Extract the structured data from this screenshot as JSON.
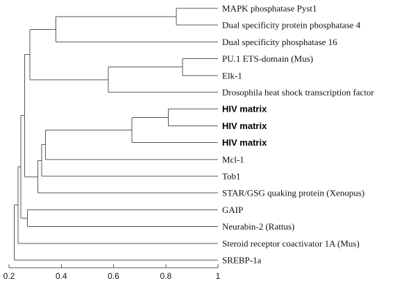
{
  "leaves": [
    {
      "id": "mapk",
      "label": "MAPK phosphatase Pyst1",
      "bold": false
    },
    {
      "id": "dusp4",
      "label": "Dual specificity protein phosphatase 4",
      "bold": false
    },
    {
      "id": "dusp16",
      "label": "Dual specificity phosphatase 16",
      "bold": false
    },
    {
      "id": "pu1",
      "label": "PU.1 ETS-domain (Mus)",
      "bold": false
    },
    {
      "id": "elk1",
      "label": "Elk-1",
      "bold": false
    },
    {
      "id": "dhstf",
      "label": "Drosophila heat shock transcription factor",
      "bold": false
    },
    {
      "id": "hiv1",
      "label": "HIV matrix",
      "bold": true
    },
    {
      "id": "hiv2",
      "label": "HIV matrix",
      "bold": true
    },
    {
      "id": "hiv3",
      "label": "HIV matrix",
      "bold": true
    },
    {
      "id": "mcl1",
      "label": "Mcl-1",
      "bold": false
    },
    {
      "id": "tob1",
      "label": "Tob1",
      "bold": false
    },
    {
      "id": "star",
      "label": "STAR/GSG quaking protein (Xenopus)",
      "bold": false
    },
    {
      "id": "gaip",
      "label": "GAIP",
      "bold": false
    },
    {
      "id": "neurabin",
      "label": "Neurabin-2 (Rattus)",
      "bold": false
    },
    {
      "id": "src1a",
      "label": "Steroid receptor coactivator 1A (Mus)",
      "bold": false
    },
    {
      "id": "srebp",
      "label": "SREBP-1a",
      "bold": false
    }
  ],
  "tree": {
    "h": 0.22,
    "children": [
      {
        "h": 0.235,
        "children": [
          {
            "h": 0.245,
            "children": [
              {
                "h": 0.26,
                "children": [
                  {
                    "h": 0.28,
                    "children": [
                      {
                        "h": 0.38,
                        "children": [
                          {
                            "h": 0.84,
                            "children": [
                              {
                                "leaf": "mapk"
                              },
                              {
                                "leaf": "dusp4"
                              }
                            ]
                          },
                          {
                            "leaf": "dusp16"
                          }
                        ]
                      },
                      {
                        "h": 0.58,
                        "children": [
                          {
                            "h": 0.865,
                            "children": [
                              {
                                "leaf": "pu1"
                              },
                              {
                                "leaf": "elk1"
                              }
                            ]
                          },
                          {
                            "leaf": "dhstf"
                          }
                        ]
                      }
                    ]
                  },
                  {
                    "h": 0.28,
                    "children": [
                      {
                        "h": 0.31,
                        "children": [
                          {
                            "h": 0.325,
                            "children": [
                              {
                                "h": 0.34,
                                "children": [
                                  {
                                    "h": 0.67,
                                    "children": [
                                      {
                                        "h": 0.81,
                                        "children": [
                                          {
                                            "leaf": "hiv1"
                                          },
                                          {
                                            "leaf": "hiv2"
                                          }
                                        ]
                                      },
                                      {
                                        "leaf": "hiv3"
                                      }
                                    ]
                                  },
                                  {
                                    "leaf": "mcl1"
                                  }
                                ]
                              },
                              {
                                "leaf": "tob1"
                              }
                            ]
                          },
                          {
                            "leaf": "star"
                          }
                        ]
                      }
                    ]
                  }
                ]
              },
              {
                "h": 0.27,
                "children": [
                  {
                    "leaf": "gaip"
                  },
                  {
                    "leaf": "neurabin"
                  }
                ]
              }
            ]
          },
          {
            "leaf": "src1a"
          }
        ]
      },
      {
        "leaf": "srebp"
      }
    ]
  },
  "axis": {
    "min": 0.2,
    "max": 1.0,
    "ticks": [
      {
        "value": 0.2,
        "label": "0.2"
      },
      {
        "value": 0.4,
        "label": "0.4"
      },
      {
        "value": 0.6,
        "label": "0.6"
      },
      {
        "value": 0.8,
        "label": "0.8"
      },
      {
        "value": 1.0,
        "label": "1"
      }
    ]
  },
  "colors": {
    "line": "#555555",
    "text": "#111111"
  }
}
